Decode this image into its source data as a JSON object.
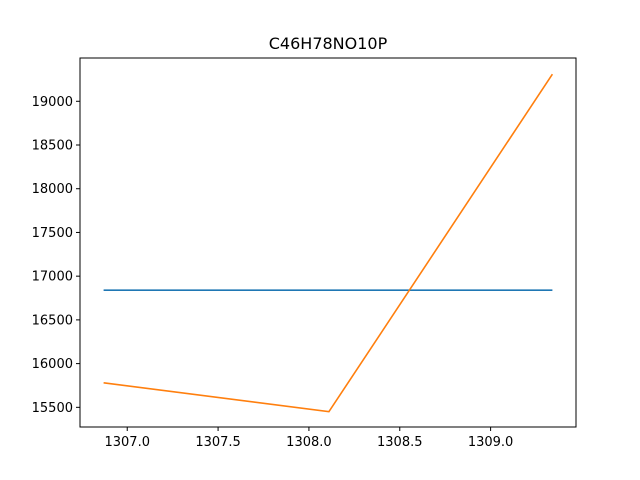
{
  "chart_data": {
    "type": "line",
    "title": "C46H78NO10P",
    "xlabel": "",
    "ylabel": "",
    "xlim": [
      1306.74,
      1309.47
    ],
    "ylim": [
      15275,
      19495
    ],
    "x_ticks": [
      "1307.0",
      "1307.5",
      "1308.0",
      "1308.5",
      "1309.0"
    ],
    "y_ticks": [
      "15500",
      "16000",
      "16500",
      "17000",
      "17500",
      "18000",
      "18500",
      "19000"
    ],
    "grid": false,
    "legend": "none",
    "series": [
      {
        "color": "#1f77b4",
        "x": [
          1306.87,
          1309.34
        ],
        "y": [
          16840,
          16840
        ]
      },
      {
        "color": "#ff7f0e",
        "x": [
          1306.87,
          1308.11,
          1309.34
        ],
        "y": [
          15780,
          15450,
          19310
        ]
      }
    ]
  }
}
